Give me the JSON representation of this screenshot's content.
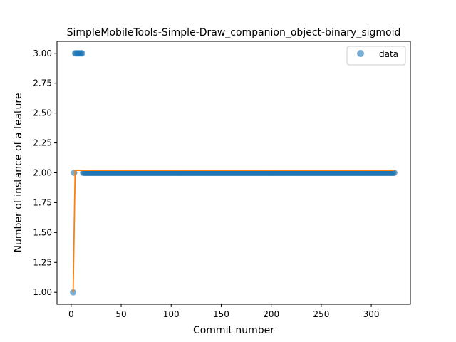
{
  "chart_data": {
    "type": "scatter",
    "title": "SimpleMobileTools-Simple-Draw_companion_object-binary_sigmoid",
    "xlabel": "Commit number",
    "ylabel": "Number of instance of a feature",
    "xlim": [
      -14.1,
      339.1
    ],
    "ylim": [
      0.9,
      3.1
    ],
    "xticks": [
      0,
      50,
      100,
      150,
      200,
      250,
      300
    ],
    "yticks": [
      1.0,
      1.25,
      1.5,
      1.75,
      2.0,
      2.25,
      2.5,
      2.75,
      3.0
    ],
    "ytick_labels": [
      "1.00",
      "1.25",
      "1.50",
      "1.75",
      "2.00",
      "2.25",
      "2.50",
      "2.75",
      "3.00"
    ],
    "grid": false,
    "legend": {
      "position": "top-right",
      "entries": [
        "data"
      ]
    },
    "series": [
      {
        "name": "data",
        "kind": "scatter",
        "color": "#1f77b4",
        "points": [
          [
            2,
            1
          ],
          [
            3,
            2
          ],
          [
            4,
            3
          ],
          [
            5,
            3
          ],
          [
            6,
            3
          ],
          [
            7,
            3
          ],
          [
            8,
            3
          ],
          [
            9,
            3
          ],
          [
            10,
            3
          ],
          [
            11,
            3
          ]
        ],
        "run": {
          "x_start": 12,
          "x_end": 323,
          "y": 2
        }
      },
      {
        "kind": "line",
        "color": "#ff7f0e",
        "points": [
          [
            2,
            1
          ],
          [
            3,
            1.5
          ],
          [
            4,
            2.02
          ],
          [
            323,
            2.02
          ]
        ]
      }
    ]
  }
}
